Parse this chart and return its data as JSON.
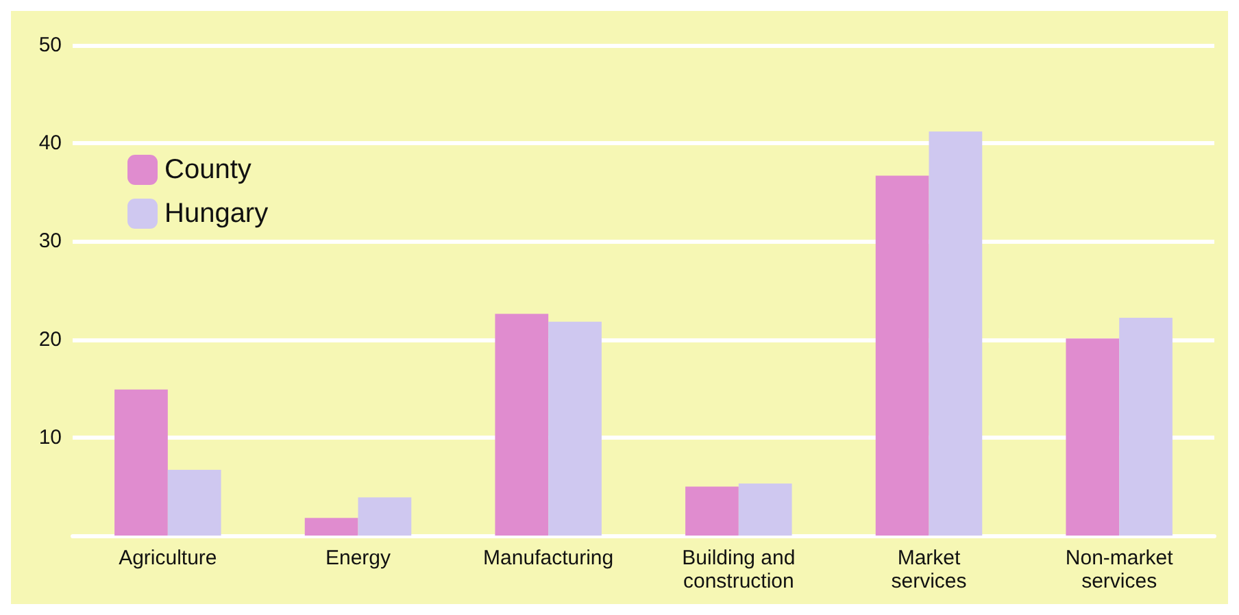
{
  "chart_data": {
    "type": "bar",
    "categories": [
      "Agriculture",
      "Energy",
      "Manufacturing",
      "Building and construction",
      "Market services",
      "Non-market services"
    ],
    "series": [
      {
        "name": "County",
        "color": "#e08ccf",
        "values": [
          14.9,
          1.8,
          22.6,
          5.0,
          36.7,
          20.1
        ]
      },
      {
        "name": "Hungary",
        "color": "#cfc8f0",
        "values": [
          6.7,
          3.9,
          21.8,
          5.3,
          41.2,
          22.2
        ]
      }
    ],
    "ylim": [
      0,
      50
    ],
    "yticks": [
      {
        "value": 0,
        "label": null
      },
      10,
      20,
      30,
      40,
      50
    ],
    "grid": "y",
    "legend": "top left"
  }
}
